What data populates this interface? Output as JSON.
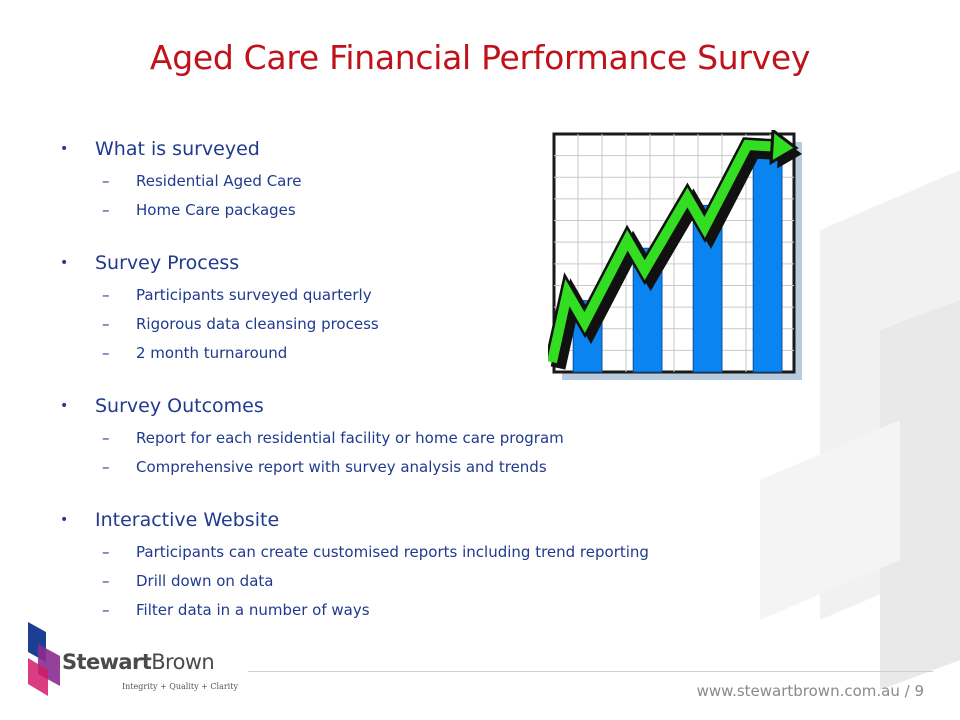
{
  "title": "Aged Care Financial Performance Survey",
  "sections": [
    {
      "heading": "What is surveyed",
      "items": [
        "Residential Aged Care",
        "Home Care packages"
      ]
    },
    {
      "heading": "Survey Process",
      "items": [
        "Participants surveyed quarterly",
        "Rigorous data cleansing process",
        "2 month turnaround"
      ]
    },
    {
      "heading": "Survey Outcomes",
      "items": [
        "Report for each residential facility or home care program",
        "Comprehensive report with survey analysis and trends"
      ]
    },
    {
      "heading": "Interactive Website",
      "items": [
        "Participants can create customised reports including trend reporting",
        "Drill down on data",
        "Filter data in a number of ways"
      ]
    }
  ],
  "bullet_glyph": "•",
  "dash_glyph": "–",
  "chart_data": {
    "type": "bar",
    "values": [
      30,
      52,
      70,
      92
    ],
    "ylim": [
      0,
      100
    ],
    "grid": true,
    "trend_arrow": true,
    "colors": {
      "bar": "#0a84f0",
      "arrow": "#33dd22"
    }
  },
  "footer": {
    "url": "www.stewartbrown.com.au",
    "page_separator": " / ",
    "page_number": "9"
  },
  "logo": {
    "brand_part1": "Stewart",
    "brand_part2": "Brown",
    "tagline": "Integrity + Quality + Clarity",
    "colors": [
      "#1c3f94",
      "#8a2b8f",
      "#d21c6b"
    ]
  }
}
